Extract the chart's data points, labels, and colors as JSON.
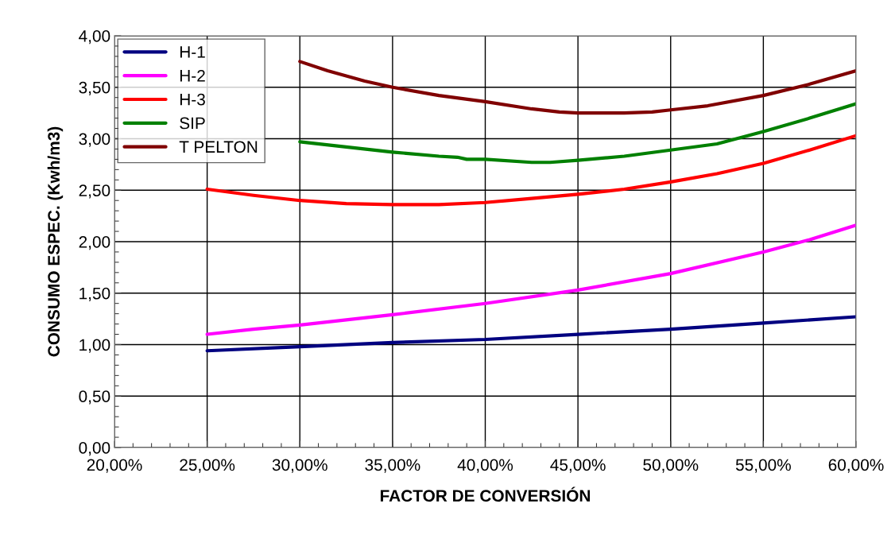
{
  "chart_data": {
    "type": "line",
    "xlabel": "FACTOR DE CONVERSIÓN",
    "ylabel": "CONSUMO ESPEC. (Kwh/m3)",
    "xlim": [
      20,
      60
    ],
    "xticks": [
      {
        "value": 20,
        "label": "20,00%"
      },
      {
        "value": 25,
        "label": "25,00%"
      },
      {
        "value": 30,
        "label": "30,00%"
      },
      {
        "value": 35,
        "label": "35,00%"
      },
      {
        "value": 40,
        "label": "40,00%"
      },
      {
        "value": 45,
        "label": "45,00%"
      },
      {
        "value": 50,
        "label": "50,00%"
      },
      {
        "value": 55,
        "label": "55,00%"
      },
      {
        "value": 60,
        "label": "60,00%"
      }
    ],
    "ylim": [
      0,
      4
    ],
    "yticks": [
      {
        "value": 0,
        "label": "0,00"
      },
      {
        "value": 0.5,
        "label": "0,50"
      },
      {
        "value": 1,
        "label": "1,00"
      },
      {
        "value": 1.5,
        "label": "1,50"
      },
      {
        "value": 2,
        "label": "2,00"
      },
      {
        "value": 2.5,
        "label": "2,50"
      },
      {
        "value": 3,
        "label": "3,00"
      },
      {
        "value": 3.5,
        "label": "3,50"
      },
      {
        "value": 4,
        "label": "4,00"
      }
    ],
    "grid": true,
    "legend": "top left",
    "marker": "none",
    "line_style": "solid",
    "series": [
      {
        "name": "H-1",
        "color": "#000080",
        "x": [
          25,
          30,
          35,
          40,
          45,
          50,
          55,
          60
        ],
        "values": [
          0.94,
          0.98,
          1.02,
          1.05,
          1.1,
          1.15,
          1.21,
          1.27
        ]
      },
      {
        "name": "H-2",
        "color": "#ff00ff",
        "x": [
          25,
          27.5,
          30,
          35,
          40,
          45,
          50,
          55,
          57.5,
          60
        ],
        "values": [
          1.1,
          1.15,
          1.19,
          1.29,
          1.4,
          1.53,
          1.69,
          1.9,
          2.02,
          2.16
        ]
      },
      {
        "name": "H-3",
        "color": "#ff0000",
        "x": [
          25,
          27.5,
          30,
          32.5,
          35,
          37.5,
          40,
          42.5,
          45,
          47.5,
          50,
          52.5,
          55,
          57.5,
          60
        ],
        "values": [
          2.51,
          2.45,
          2.4,
          2.37,
          2.36,
          2.36,
          2.38,
          2.42,
          2.46,
          2.51,
          2.58,
          2.66,
          2.76,
          2.89,
          3.03
        ]
      },
      {
        "name": "SIP",
        "color": "#008000",
        "x": [
          30,
          32.5,
          35,
          37.5,
          38.5,
          39,
          40,
          42.5,
          43.5,
          45,
          47.5,
          50,
          52.5,
          55,
          57.5,
          60
        ],
        "values": [
          2.97,
          2.92,
          2.87,
          2.83,
          2.82,
          2.8,
          2.8,
          2.77,
          2.77,
          2.79,
          2.83,
          2.89,
          2.95,
          3.07,
          3.2,
          3.34
        ]
      },
      {
        "name": "T PELTON",
        "color": "#800000",
        "x": [
          30,
          31.5,
          33.5,
          35,
          37.5,
          40,
          42.5,
          44,
          45,
          47.5,
          49,
          50,
          52,
          55,
          57.5,
          60
        ],
        "values": [
          3.75,
          3.66,
          3.56,
          3.5,
          3.42,
          3.36,
          3.29,
          3.26,
          3.25,
          3.25,
          3.26,
          3.28,
          3.32,
          3.42,
          3.53,
          3.66
        ]
      }
    ]
  }
}
